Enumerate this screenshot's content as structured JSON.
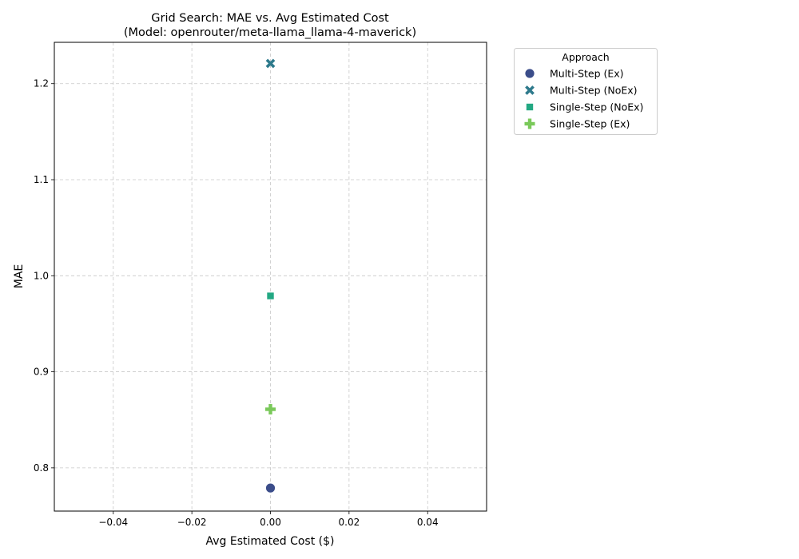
{
  "chart_data": {
    "type": "scatter",
    "title_line1": "Grid Search: MAE vs. Avg Estimated Cost",
    "title_line2": "(Model: openrouter/meta-llama_llama-4-maverick)",
    "xlabel": "Avg Estimated Cost ($)",
    "ylabel": "MAE",
    "xlim": [
      -0.055,
      0.055
    ],
    "ylim": [
      0.755,
      1.243
    ],
    "xticks": [
      -0.04,
      -0.02,
      0.0,
      0.02,
      0.04
    ],
    "xtick_labels": [
      "−0.04",
      "−0.02",
      "0.00",
      "0.02",
      "0.04"
    ],
    "yticks": [
      0.8,
      0.9,
      1.0,
      1.1,
      1.2
    ],
    "ytick_labels": [
      "0.8",
      "0.9",
      "1.0",
      "1.1",
      "1.2"
    ],
    "grid": true,
    "legend": {
      "title": "Approach",
      "placement": "outside-upper-right"
    },
    "series": [
      {
        "name": "Multi-Step (Ex)",
        "marker": "circle",
        "color": "#3b4d8a",
        "points": [
          {
            "x": 0.0,
            "y": 0.779
          }
        ]
      },
      {
        "name": "Multi-Step (NoEx)",
        "marker": "x",
        "color": "#2e7a8c",
        "points": [
          {
            "x": 0.0,
            "y": 1.221
          }
        ]
      },
      {
        "name": "Single-Step (NoEx)",
        "marker": "square",
        "color": "#23a883",
        "points": [
          {
            "x": 0.0,
            "y": 0.979
          }
        ]
      },
      {
        "name": "Single-Step (Ex)",
        "marker": "plus",
        "color": "#7ac95a",
        "points": [
          {
            "x": 0.0,
            "y": 0.861
          }
        ]
      }
    ]
  }
}
